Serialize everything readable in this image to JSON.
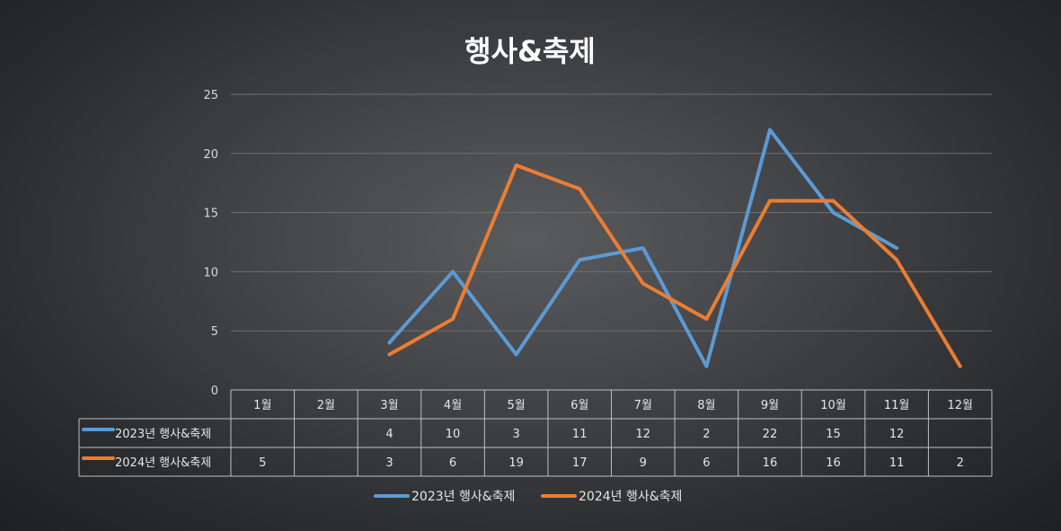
{
  "chart_data": {
    "type": "line",
    "title": "행사&축제",
    "categories": [
      "1월",
      "2월",
      "3월",
      "4월",
      "5월",
      "6월",
      "7월",
      "8월",
      "9월",
      "10월",
      "11월",
      "12월"
    ],
    "ylim": [
      0,
      25
    ],
    "yticks": [
      "0",
      "5",
      "10",
      "15",
      "20",
      "25"
    ],
    "grid": true,
    "legend_position": "bottom",
    "data_table": true,
    "series": [
      {
        "name": "2023년 행사&축제",
        "color": "#5b9bd5",
        "values": [
          null,
          null,
          4,
          10,
          3,
          11,
          12,
          2,
          22,
          15,
          12,
          null
        ],
        "labels": [
          "",
          "",
          "4",
          "10",
          "3",
          "11",
          "12",
          "2",
          "22",
          "15",
          "12",
          ""
        ]
      },
      {
        "name": "2024년 행사&축제",
        "color": "#ed7d31",
        "values": [
          5,
          null,
          3,
          6,
          19,
          17,
          9,
          6,
          16,
          16,
          11,
          2
        ],
        "labels": [
          "5",
          "",
          "3",
          "6",
          "19",
          "17",
          "9",
          "6",
          "16",
          "16",
          "11",
          "2"
        ]
      }
    ]
  }
}
